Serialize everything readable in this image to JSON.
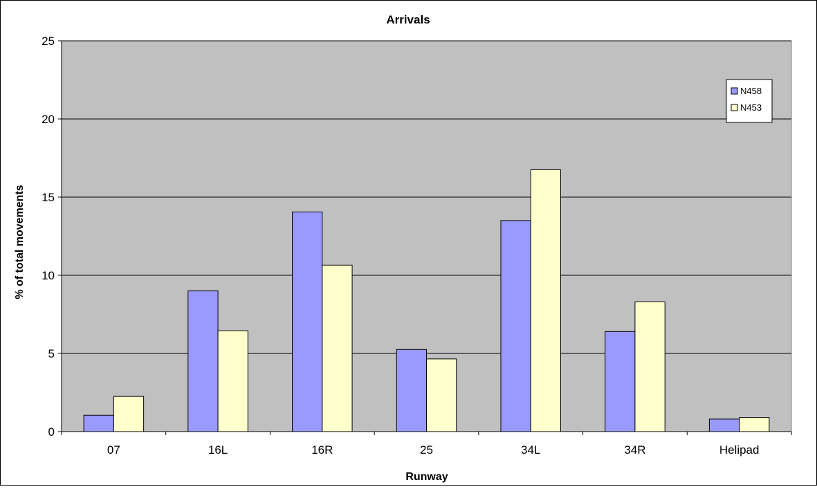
{
  "chart_data": {
    "type": "bar",
    "title": "Arrivals",
    "xlabel": "Runway",
    "ylabel": "% of total movements",
    "categories": [
      "07",
      "16L",
      "16R",
      "25",
      "34L",
      "34R",
      "Helipad"
    ],
    "series": [
      {
        "name": "N458",
        "values": [
          1.05,
          9.0,
          14.05,
          5.25,
          13.5,
          6.4,
          0.8
        ],
        "color": "#9999ff"
      },
      {
        "name": "N453",
        "values": [
          2.25,
          6.45,
          10.65,
          4.65,
          16.75,
          8.3,
          0.9
        ],
        "color": "#ffffcc"
      }
    ],
    "ylim": [
      0,
      25
    ],
    "yticks": [
      0,
      5,
      10,
      15,
      20,
      25
    ],
    "grid": true,
    "legend_position": "top-right",
    "plot_background": "#c0c0c0"
  }
}
